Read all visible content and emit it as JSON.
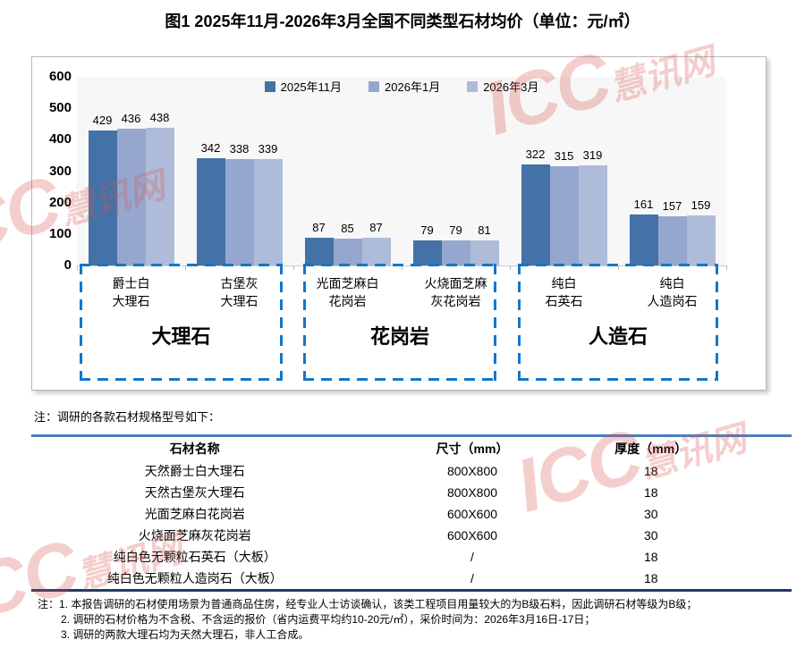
{
  "title": "图1  2025年11月-2026年3月全国不同类型石材均价（单位：元/㎡）",
  "chart_data": {
    "type": "bar",
    "title": "图1 2025年11月-2026年3月全国不同类型石材均价",
    "unit_label": "元/㎡",
    "ylim": [
      0,
      600
    ],
    "yticks": [
      600,
      500,
      400,
      300,
      200,
      100,
      0
    ],
    "grid": false,
    "legend_position": "top-center",
    "plot_bg": "#f7f7f7",
    "group_box_color": "#1377c9",
    "categories": [
      "爵士白大理石",
      "古堡灰大理石",
      "光面芝麻白花岗岩",
      "火烧面芝麻灰花岗岩",
      "纯白石英石",
      "纯白人造岗石"
    ],
    "category_labels": [
      [
        "爵士白",
        "大理石"
      ],
      [
        "古堡灰",
        "大理石"
      ],
      [
        "光面芝麻白",
        "花岗岩"
      ],
      [
        "火烧面芝麻",
        "灰花岗岩"
      ],
      [
        "纯白",
        "石英石"
      ],
      [
        "纯白",
        "人造岗石"
      ]
    ],
    "series": [
      {
        "name": "2025年11月",
        "color": "#4472a6",
        "values": [
          429,
          342,
          87,
          79,
          322,
          161
        ]
      },
      {
        "name": "2026年1月",
        "color": "#95a7ce",
        "values": [
          436,
          338,
          85,
          79,
          315,
          157
        ]
      },
      {
        "name": "2026年3月",
        "color": "#aebcd9",
        "values": [
          438,
          339,
          87,
          81,
          319,
          159
        ]
      }
    ],
    "groups": [
      {
        "label": "大理石",
        "categories": [
          "爵士白大理石",
          "古堡灰大理石"
        ]
      },
      {
        "label": "花岗岩",
        "categories": [
          "光面芝麻白花岗岩",
          "火烧面芝麻灰花岗岩"
        ]
      },
      {
        "label": "人造石",
        "categories": [
          "纯白石英石",
          "纯白人造岗石"
        ]
      }
    ]
  },
  "note_above_table": "注：调研的各款石材规格型号如下：",
  "spec_table": {
    "headers": [
      "石材名称",
      "尺寸（mm）",
      "厚度（mm）"
    ],
    "rows": [
      [
        "天然爵士白大理石",
        "800X800",
        "18"
      ],
      [
        "天然古堡灰大理石",
        "800X800",
        "18"
      ],
      [
        "光面芝麻白花岗岩",
        "600X600",
        "30"
      ],
      [
        "火烧面芝麻灰花岗岩",
        "600X600",
        "30"
      ],
      [
        "纯白色无颗粒石英石（大板）",
        "/",
        "18"
      ],
      [
        "纯白色无颗粒人造岗石（大板）",
        "/",
        "18"
      ]
    ],
    "top_rule_color": "#4a7ebc",
    "bottom_rule_color": "#1f3a63"
  },
  "footer_notes": [
    "注：1. 本报告调研的石材使用场景为普通商品住房，经专业人士访谈确认，该类工程项目用量较大的为B级石料，因此调研石材等级为B级；",
    "2. 调研的石材价格为不含税、不含运的报价（省内运费平均约10-20元/㎡），采价时间为：2026年3月16日-17日；",
    "3. 调研的两款大理石均为天然大理石，非人工合成。"
  ],
  "watermark": {
    "brand": "ICC",
    "name": "慧讯网",
    "color": "#d9534f"
  }
}
